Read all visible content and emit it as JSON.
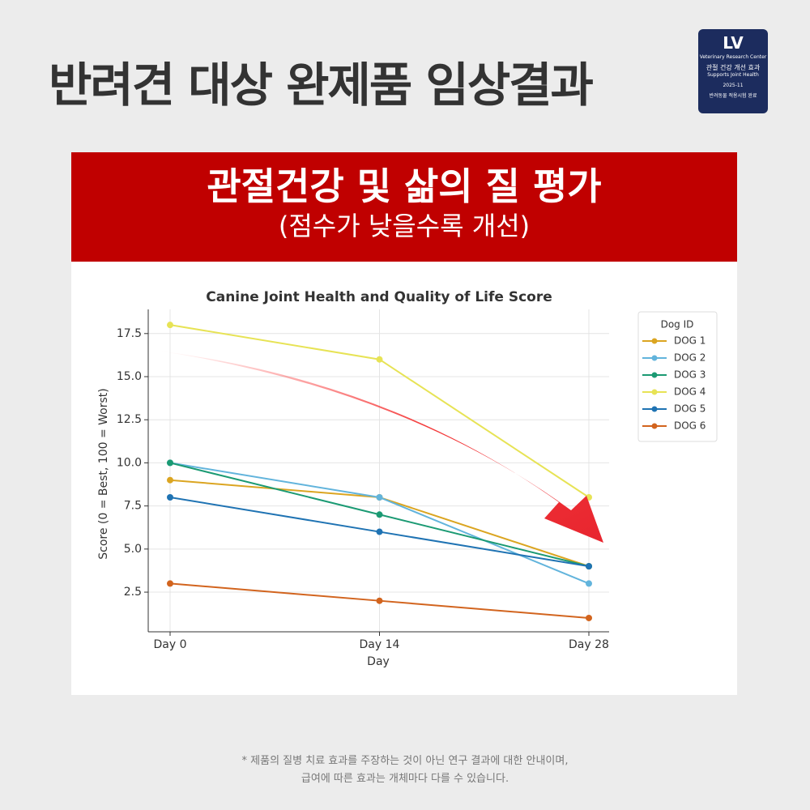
{
  "header": {
    "title": "반려견 대상 완제품 임상결과"
  },
  "badge": {
    "logo": "LV",
    "org": "Veterinary Research Center",
    "claim": "관절 건강 개선 효과",
    "claim_en": "Supports Joint Health",
    "date": "2025-11",
    "note": "반려동물 적용시험 완료"
  },
  "banner": {
    "title": "관절건강 및 삶의 질 평가",
    "subtitle": "(점수가 낮을수록 개선)"
  },
  "chart_data": {
    "type": "line",
    "title": "Canine Joint Health and Quality of Life Score",
    "x_label": "Day",
    "y_label": "Score (0 = Best, 100 = Worst)",
    "categories": [
      "Day 0",
      "Day 14",
      "Day 28"
    ],
    "series": [
      {
        "name": "DOG 1",
        "color": "#dba521",
        "values": [
          9,
          8,
          4
        ]
      },
      {
        "name": "DOG 2",
        "color": "#62b4dc",
        "values": [
          10,
          8,
          3
        ]
      },
      {
        "name": "DOG 3",
        "color": "#1b9a73",
        "values": [
          10,
          7,
          4
        ]
      },
      {
        "name": "DOG 4",
        "color": "#e7e355",
        "values": [
          18,
          16,
          8
        ]
      },
      {
        "name": "DOG 5",
        "color": "#1f73b3",
        "values": [
          8,
          6,
          4
        ]
      },
      {
        "name": "DOG 6",
        "color": "#d2641e",
        "values": [
          3,
          2,
          1
        ]
      }
    ],
    "ylim": [
      0.2,
      18.9
    ],
    "yticks": [
      2.5,
      {
        "value": 5,
        "label": "5.0"
      },
      7.5,
      {
        "value": 10,
        "label": "10.0"
      },
      12.5,
      {
        "value": 15,
        "label": "15.0"
      },
      17.5
    ],
    "grid": true,
    "legend_title": "Dog ID",
    "legend": "upper right"
  },
  "footer": {
    "line1": "* 제품의 질병 치료 효과를 주장하는 것이 아닌 연구 결과에 대한 안내이며,",
    "line2": "급여에 따른 효과는 개체마다 다를 수 있습니다."
  }
}
